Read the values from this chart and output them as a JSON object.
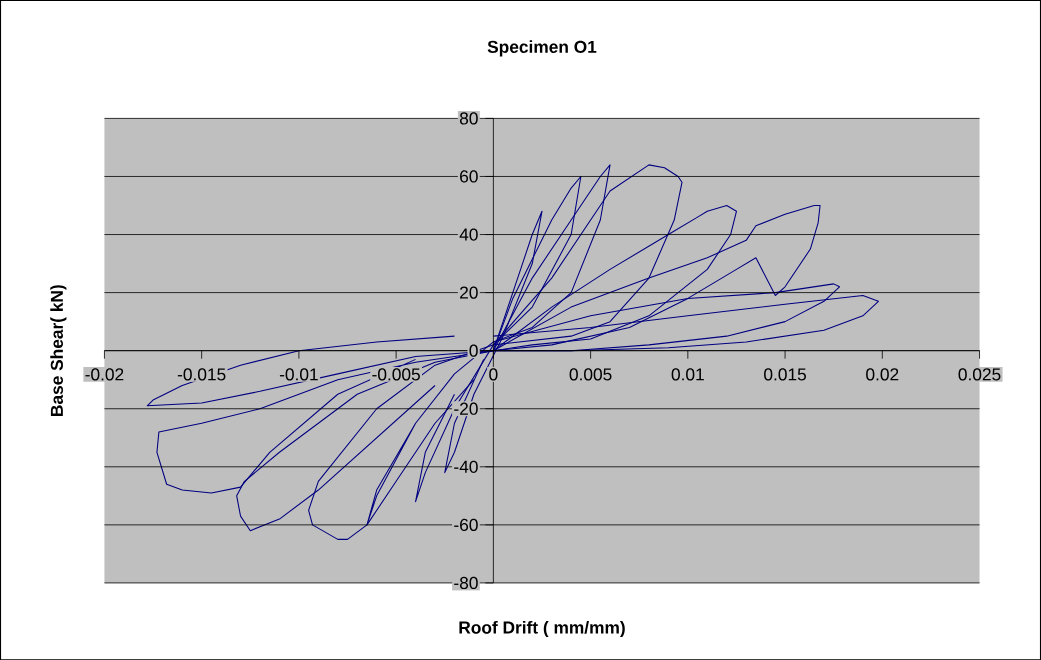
{
  "chart_data": {
    "type": "line",
    "title": "Specimen O1",
    "xlabel": "Roof Drift ( mm/mm)",
    "ylabel": "Base Shear( kN)",
    "xlim": [
      -0.02,
      0.025
    ],
    "ylim": [
      -80,
      80
    ],
    "xticks": [
      -0.02,
      -0.015,
      -0.01,
      -0.005,
      0,
      0.005,
      0.01,
      0.015,
      0.02,
      0.025
    ],
    "yticks": [
      -80,
      -60,
      -40,
      -20,
      0,
      20,
      40,
      60,
      80
    ],
    "grid": "y",
    "marker": "none",
    "line_style": "solid",
    "series": [
      {
        "color": "#000080",
        "x": [
          0,
          0.001,
          0.002,
          0.0025,
          0.002,
          0.0005,
          -0.001,
          -0.002,
          -0.0025,
          -0.002,
          -0.0005
        ],
        "values": [
          0,
          20,
          40,
          48,
          30,
          5,
          -15,
          -35,
          -42,
          -25,
          -3
        ]
      },
      {
        "color": "#000080",
        "x": [
          0,
          0.001,
          0.003,
          0.004,
          0.0045,
          0.004,
          0.002,
          0,
          -0.002,
          -0.0035,
          -0.004,
          -0.0035,
          -0.002
        ],
        "values": [
          0,
          18,
          45,
          56,
          60,
          40,
          15,
          2,
          -20,
          -42,
          -52,
          -35,
          -15
        ]
      },
      {
        "color": "#000080",
        "x": [
          0,
          0.002,
          0.004,
          0.0055,
          0.006,
          0.0055,
          0.004,
          0.002,
          0,
          -0.002,
          -0.004,
          -0.006,
          -0.0065,
          -0.006,
          -0.004,
          -0.002
        ],
        "values": [
          0,
          25,
          45,
          60,
          64,
          45,
          20,
          8,
          3,
          -8,
          -25,
          -50,
          -60,
          -48,
          -25,
          -8
        ]
      },
      {
        "color": "#000080",
        "x": [
          0,
          0.003,
          0.006,
          0.008,
          0.0088,
          0.0095,
          0.0097,
          0.0093,
          0.008,
          0.006,
          0.004,
          0,
          -0.003,
          -0.006,
          -0.009,
          -0.0095,
          -0.0093,
          -0.008,
          -0.0075,
          -0.0065,
          -0.005,
          -0.003,
          -0.001
        ],
        "values": [
          2,
          25,
          55,
          64,
          63,
          60,
          58,
          45,
          25,
          10,
          5,
          2,
          -5,
          -20,
          -45,
          -55,
          -60,
          -65,
          -65,
          -60,
          -45,
          -25,
          -10
        ]
      },
      {
        "color": "#000080",
        "x": [
          0,
          0.003,
          0.006,
          0.009,
          0.0105,
          0.011,
          0.012,
          0.0125,
          0.0122,
          0.011,
          0.008,
          0.005,
          0.002,
          0,
          -0.003,
          -0.007,
          -0.011,
          -0.0128,
          -0.0132,
          -0.013,
          -0.0125,
          -0.011,
          -0.009,
          -0.006,
          -0.003
        ],
        "values": [
          0,
          15,
          28,
          40,
          46,
          48,
          50,
          48,
          40,
          28,
          12,
          4,
          2,
          0,
          -4,
          -15,
          -35,
          -45,
          -50,
          -57,
          -62,
          -58,
          -48,
          -30,
          -12
        ]
      },
      {
        "color": "#000080",
        "x": [
          0,
          0.004,
          0.008,
          0.011,
          0.013,
          0.0135,
          0.015,
          0.0165,
          0.0168,
          0.0167,
          0.0163,
          0.015,
          0.0145,
          0.0135,
          0.0125,
          0.01,
          0.007,
          0.003,
          0,
          -0.004,
          -0.008,
          -0.012,
          -0.015,
          -0.0172,
          -0.0173,
          -0.0168,
          -0.016,
          -0.0145,
          -0.013,
          -0.0115,
          -0.008,
          -0.004
        ],
        "values": [
          0,
          15,
          25,
          32,
          38,
          43,
          47,
          50,
          50,
          44,
          35,
          22,
          19,
          32,
          28,
          18,
          8,
          2,
          0,
          -4,
          -10,
          -20,
          -25,
          -28,
          -35,
          -46,
          -48,
          -49,
          -47,
          -35,
          -15,
          -3
        ]
      },
      {
        "color": "#000080",
        "x": [
          0,
          0.005,
          0.01,
          0.0145,
          0.0175,
          0.0178,
          0.017,
          0.015,
          0.012,
          0.008,
          0.004,
          0,
          -0.004,
          -0.008,
          -0.012,
          -0.015,
          -0.0178,
          -0.0175,
          -0.016,
          -0.013,
          -0.01,
          -0.006,
          -0.002
        ],
        "values": [
          3,
          12,
          18,
          20,
          23,
          22,
          17,
          10,
          5,
          2,
          0,
          0,
          -2,
          -8,
          -14,
          -18,
          -19,
          -17,
          -12,
          -5,
          0,
          3,
          5
        ]
      },
      {
        "color": "#000080",
        "x": [
          0,
          0.005,
          0.01,
          0.015,
          0.019,
          0.0198,
          0.019,
          0.017,
          0.013,
          0.009,
          0.004,
          0
        ],
        "values": [
          5,
          8,
          12,
          16,
          19,
          17,
          12,
          7,
          3,
          1,
          0,
          0
        ]
      }
    ]
  }
}
